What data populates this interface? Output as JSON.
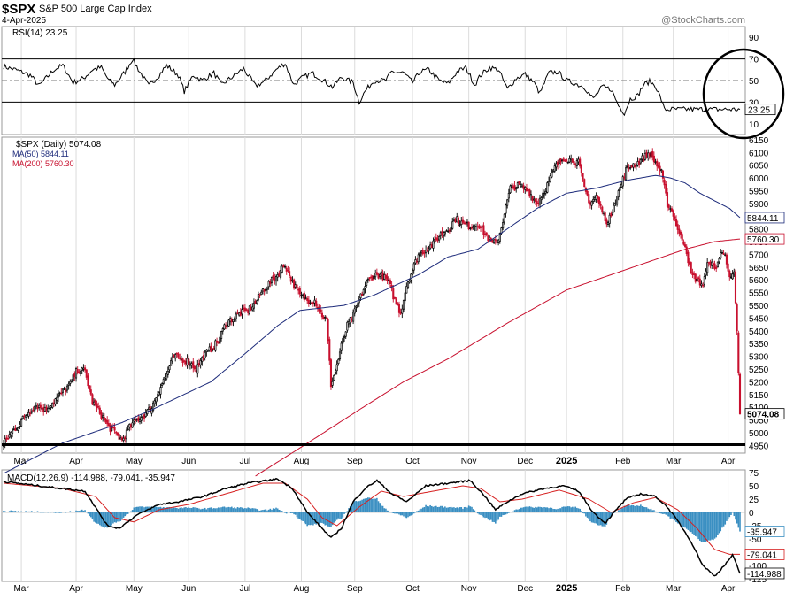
{
  "header": {
    "ticker": "$SPX",
    "name": "S&P 500 Large Cap Index",
    "date": "4-Apr-2025",
    "watermark": "@StockCharts.com"
  },
  "colors": {
    "price_up": "#000000",
    "price_down": "#c8102e",
    "ma50": "#1c2a7a",
    "ma200": "#c8102e",
    "macd_line": "#000000",
    "signal_line": "#d62020",
    "histogram": "#3a8fc2",
    "rsi_fill": "#4a7a4a"
  },
  "chart_data": [
    {
      "type": "line",
      "title": "RSI(14) 23.25",
      "indicator": "RSI(14)",
      "current": 23.25,
      "current_label": "23.25",
      "ylim": [
        0,
        100
      ],
      "ytick_labels": [
        "90",
        "70",
        "50",
        "30",
        "10"
      ],
      "reference_lines": [
        70,
        50,
        30
      ],
      "anchors": [
        [
          0,
          63
        ],
        [
          8,
          60
        ],
        [
          18,
          55
        ],
        [
          24,
          45
        ],
        [
          34,
          60
        ],
        [
          40,
          64
        ],
        [
          47,
          48
        ],
        [
          54,
          52
        ],
        [
          60,
          60
        ],
        [
          66,
          62
        ],
        [
          71,
          50
        ],
        [
          75,
          46
        ],
        [
          82,
          58
        ],
        [
          87,
          70
        ],
        [
          92,
          58
        ],
        [
          98,
          45
        ],
        [
          105,
          55
        ],
        [
          110,
          64
        ],
        [
          118,
          55
        ],
        [
          122,
          40
        ],
        [
          128,
          55
        ],
        [
          134,
          50
        ],
        [
          142,
          57
        ],
        [
          147,
          46
        ],
        [
          156,
          55
        ],
        [
          162,
          61
        ],
        [
          170,
          45
        ],
        [
          176,
          49
        ],
        [
          184,
          60
        ],
        [
          190,
          66
        ],
        [
          196,
          46
        ],
        [
          201,
          52
        ],
        [
          208,
          57
        ],
        [
          214,
          52
        ],
        [
          222,
          44
        ],
        [
          228,
          53
        ],
        [
          236,
          48
        ],
        [
          240,
          30
        ],
        [
          244,
          40
        ],
        [
          250,
          50
        ],
        [
          258,
          50
        ],
        [
          262,
          58
        ],
        [
          270,
          57
        ],
        [
          276,
          48
        ],
        [
          281,
          58
        ],
        [
          287,
          60
        ],
        [
          294,
          50
        ],
        [
          300,
          47
        ],
        [
          306,
          58
        ],
        [
          312,
          62
        ],
        [
          318,
          46
        ],
        [
          322,
          55
        ],
        [
          328,
          62
        ],
        [
          334,
          60
        ],
        [
          340,
          42
        ],
        [
          346,
          52
        ],
        [
          352,
          56
        ],
        [
          358,
          48
        ],
        [
          362,
          38
        ],
        [
          368,
          57
        ],
        [
          374,
          58
        ],
        [
          380,
          50
        ],
        [
          386,
          47
        ],
        [
          392,
          44
        ],
        [
          398,
          33
        ],
        [
          404,
          44
        ],
        [
          410,
          42
        ],
        [
          415,
          27
        ],
        [
          419,
          20
        ],
        [
          423,
          33
        ],
        [
          428,
          36
        ],
        [
          432,
          46
        ],
        [
          436,
          49
        ],
        [
          440,
          45
        ],
        [
          444,
          32
        ],
        [
          446,
          23.25
        ]
      ],
      "annotation": "circle around latest RSI reading"
    },
    {
      "type": "candlestick",
      "title": "$SPX (Daily) 5074.08",
      "legend": [
        "$SPX (Daily) 5074.08",
        "MA(50) 5844.11",
        "MA(200) 5760.30"
      ],
      "last_close": 5074.08,
      "ma50_last": 5844.11,
      "ma200_last": 5760.3,
      "ylim": [
        4920,
        6160
      ],
      "ytick_labels": [
        "6150",
        "6100",
        "6050",
        "6000",
        "5950",
        "5900",
        "5850",
        "5800",
        "5750",
        "5700",
        "5650",
        "5600",
        "5550",
        "5500",
        "5450",
        "5400",
        "5350",
        "5300",
        "5250",
        "5200",
        "5150",
        "5100",
        "5050",
        "5000",
        "4950"
      ],
      "value_labels": [
        "5844.11",
        "5760.30",
        "5074.08"
      ],
      "horizontal_line": 4953,
      "close_anchors": [
        [
          0,
          4955
        ],
        [
          5,
          5000
        ],
        [
          10,
          5030
        ],
        [
          15,
          5070
        ],
        [
          22,
          5110
        ],
        [
          28,
          5090
        ],
        [
          35,
          5130
        ],
        [
          40,
          5160
        ],
        [
          45,
          5190
        ],
        [
          50,
          5250
        ],
        [
          55,
          5240
        ],
        [
          60,
          5120
        ],
        [
          65,
          5080
        ],
        [
          70,
          5030
        ],
        [
          75,
          5000
        ],
        [
          80,
          4970
        ],
        [
          85,
          5020
        ],
        [
          90,
          5050
        ],
        [
          95,
          5070
        ],
        [
          100,
          5100
        ],
        [
          105,
          5170
        ],
        [
          110,
          5230
        ],
        [
          115,
          5300
        ],
        [
          120,
          5290
        ],
        [
          125,
          5280
        ],
        [
          130,
          5250
        ],
        [
          135,
          5300
        ],
        [
          140,
          5330
        ],
        [
          145,
          5360
        ],
        [
          150,
          5430
        ],
        [
          155,
          5450
        ],
        [
          160,
          5470
        ],
        [
          165,
          5480
        ],
        [
          170,
          5510
        ],
        [
          175,
          5560
        ],
        [
          180,
          5590
        ],
        [
          185,
          5620
        ],
        [
          190,
          5660
        ],
        [
          195,
          5590
        ],
        [
          200,
          5540
        ],
        [
          205,
          5520
        ],
        [
          210,
          5520
        ],
        [
          214,
          5470
        ],
        [
          218,
          5440
        ],
        [
          221,
          5190
        ],
        [
          224,
          5240
        ],
        [
          228,
          5340
        ],
        [
          232,
          5420
        ],
        [
          236,
          5460
        ],
        [
          240,
          5520
        ],
        [
          245,
          5590
        ],
        [
          250,
          5620
        ],
        [
          255,
          5620
        ],
        [
          260,
          5590
        ],
        [
          264,
          5520
        ],
        [
          268,
          5470
        ],
        [
          272,
          5580
        ],
        [
          276,
          5640
        ],
        [
          280,
          5700
        ],
        [
          285,
          5720
        ],
        [
          290,
          5740
        ],
        [
          295,
          5780
        ],
        [
          300,
          5800
        ],
        [
          305,
          5840
        ],
        [
          310,
          5820
        ],
        [
          315,
          5810
        ],
        [
          320,
          5820
        ],
        [
          325,
          5780
        ],
        [
          330,
          5740
        ],
        [
          334,
          5760
        ],
        [
          338,
          5860
        ],
        [
          342,
          5960
        ],
        [
          348,
          5970
        ],
        [
          354,
          5950
        ],
        [
          360,
          5900
        ],
        [
          366,
          5960
        ],
        [
          372,
          6040
        ],
        [
          378,
          6080
        ],
        [
          384,
          6070
        ],
        [
          388,
          6060
        ],
        [
          392,
          5960
        ],
        [
          396,
          5900
        ],
        [
          400,
          5930
        ],
        [
          404,
          5870
        ],
        [
          408,
          5820
        ],
        [
          412,
          5900
        ],
        [
          416,
          5960
        ],
        [
          420,
          6030
        ],
        [
          424,
          6050
        ],
        [
          428,
          6060
        ],
        [
          432,
          6080
        ],
        [
          436,
          6100
        ],
        [
          440,
          6060
        ],
        [
          444,
          6020
        ],
        [
          448,
          5900
        ],
        [
          452,
          5860
        ],
        [
          456,
          5780
        ],
        [
          460,
          5740
        ],
        [
          464,
          5620
        ],
        [
          468,
          5600
        ],
        [
          472,
          5580
        ],
        [
          476,
          5680
        ],
        [
          480,
          5640
        ],
        [
          484,
          5700
        ],
        [
          487,
          5710
        ],
        [
          490,
          5600
        ],
        [
          493,
          5620
        ],
        [
          495,
          5400
        ],
        [
          497,
          5074.08
        ]
      ],
      "ma50_anchors": [
        [
          0,
          4840
        ],
        [
          40,
          4960
        ],
        [
          80,
          5040
        ],
        [
          100,
          5090
        ],
        [
          140,
          5200
        ],
        [
          165,
          5320
        ],
        [
          185,
          5420
        ],
        [
          200,
          5480
        ],
        [
          230,
          5500
        ],
        [
          250,
          5540
        ],
        [
          280,
          5620
        ],
        [
          300,
          5690
        ],
        [
          320,
          5720
        ],
        [
          340,
          5800
        ],
        [
          360,
          5880
        ],
        [
          380,
          5940
        ],
        [
          400,
          5960
        ],
        [
          420,
          5990
        ],
        [
          440,
          6010
        ],
        [
          450,
          6000
        ],
        [
          460,
          5980
        ],
        [
          470,
          5940
        ],
        [
          480,
          5910
        ],
        [
          490,
          5880
        ],
        [
          497,
          5844.11
        ]
      ],
      "ma200_anchors": [
        [
          170,
          4830
        ],
        [
          200,
          4940
        ],
        [
          240,
          5090
        ],
        [
          270,
          5200
        ],
        [
          300,
          5290
        ],
        [
          340,
          5430
        ],
        [
          380,
          5560
        ],
        [
          410,
          5620
        ],
        [
          440,
          5680
        ],
        [
          460,
          5720
        ],
        [
          480,
          5750
        ],
        [
          497,
          5760.3
        ]
      ]
    },
    {
      "type": "line",
      "title": "MACD(12,26,9) -114.988, -79.041, -35.947",
      "indicator": "MACD(12,26,9)",
      "macd": -114.988,
      "signal": -79.041,
      "histogram": -35.947,
      "ylim": [
        -130,
        80
      ],
      "ytick_labels": [
        "75",
        "50",
        "25",
        "0",
        "-25",
        "-50",
        "-75",
        "-100",
        "-125"
      ],
      "value_labels": [
        "-35.947",
        "-79.041",
        "-114.988"
      ],
      "macd_anchors": [
        [
          0,
          58
        ],
        [
          30,
          48
        ],
        [
          55,
          40
        ],
        [
          62,
          10
        ],
        [
          70,
          -25
        ],
        [
          78,
          -30
        ],
        [
          90,
          -5
        ],
        [
          105,
          15
        ],
        [
          118,
          20
        ],
        [
          135,
          30
        ],
        [
          150,
          45
        ],
        [
          165,
          55
        ],
        [
          185,
          63
        ],
        [
          195,
          45
        ],
        [
          205,
          0
        ],
        [
          215,
          -30
        ],
        [
          221,
          -48
        ],
        [
          228,
          -30
        ],
        [
          236,
          20
        ],
        [
          244,
          45
        ],
        [
          252,
          60
        ],
        [
          262,
          35
        ],
        [
          272,
          20
        ],
        [
          285,
          50
        ],
        [
          300,
          55
        ],
        [
          315,
          60
        ],
        [
          325,
          30
        ],
        [
          332,
          5
        ],
        [
          340,
          20
        ],
        [
          350,
          35
        ],
        [
          365,
          45
        ],
        [
          378,
          50
        ],
        [
          388,
          40
        ],
        [
          398,
          0
        ],
        [
          406,
          -20
        ],
        [
          412,
          0
        ],
        [
          420,
          25
        ],
        [
          430,
          35
        ],
        [
          440,
          30
        ],
        [
          448,
          10
        ],
        [
          456,
          -20
        ],
        [
          464,
          -55
        ],
        [
          472,
          -100
        ],
        [
          480,
          -120
        ],
        [
          488,
          -95
        ],
        [
          492,
          -80
        ],
        [
          497,
          -114.988
        ]
      ],
      "signal_anchors": [
        [
          0,
          55
        ],
        [
          40,
          45
        ],
        [
          62,
          30
        ],
        [
          75,
          -10
        ],
        [
          88,
          -18
        ],
        [
          105,
          5
        ],
        [
          125,
          15
        ],
        [
          150,
          35
        ],
        [
          175,
          55
        ],
        [
          190,
          55
        ],
        [
          205,
          25
        ],
        [
          215,
          -10
        ],
        [
          225,
          -25
        ],
        [
          240,
          10
        ],
        [
          255,
          40
        ],
        [
          270,
          30
        ],
        [
          290,
          40
        ],
        [
          310,
          50
        ],
        [
          322,
          45
        ],
        [
          335,
          20
        ],
        [
          350,
          25
        ],
        [
          375,
          42
        ],
        [
          395,
          25
        ],
        [
          410,
          0
        ],
        [
          425,
          18
        ],
        [
          440,
          28
        ],
        [
          455,
          5
        ],
        [
          468,
          -30
        ],
        [
          480,
          -70
        ],
        [
          490,
          -79
        ],
        [
          497,
          -79.041
        ]
      ]
    }
  ],
  "x_axis": {
    "labels": [
      "Mar",
      "Apr",
      "May",
      "Jun",
      "Jul",
      "Aug",
      "Sep",
      "Oct",
      "Nov",
      "Dec",
      "2025",
      "Feb",
      "Mar",
      "Apr"
    ],
    "bold_label": "2025"
  }
}
